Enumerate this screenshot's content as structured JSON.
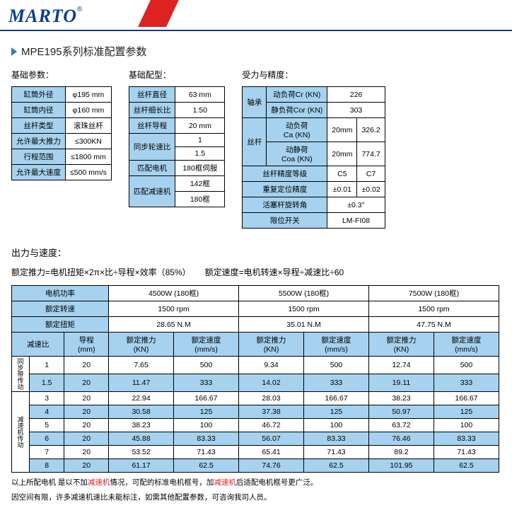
{
  "brand": "MARTO",
  "reg": "®",
  "title": "MPE195系列标准配置参数",
  "g1": {
    "label": "基础参数：",
    "rows": [
      [
        "缸筒外径",
        "φ195 mm"
      ],
      [
        "缸筒内径",
        "φ160 mm"
      ],
      [
        "丝杆类型",
        "滚珠丝杆"
      ],
      [
        "允许最大推力",
        "≤300KN"
      ],
      [
        "行程范围",
        "≤1800 mm"
      ],
      [
        "允许最大速度",
        "≤500 mm/s"
      ]
    ]
  },
  "g2": {
    "label": "基础配型：",
    "rows": [
      [
        "丝杆直径",
        "63 mm",
        1
      ],
      [
        "丝杆细长比",
        "1:50",
        1
      ],
      [
        "丝杆导程",
        "20 mm",
        1
      ],
      [
        "同步轮速比",
        "1",
        2,
        "1.5"
      ],
      [
        "匹配电机",
        "180框伺服",
        1
      ],
      [
        "匹配减速机",
        "142框",
        2,
        "180框"
      ]
    ]
  },
  "g3": {
    "label": "受力与精度：",
    "bearing": {
      "lbl": "轴承",
      "r1": [
        "动负荷Cr (KN)",
        "226"
      ],
      "r2": [
        "静负荷Cor (KN)",
        "303"
      ]
    },
    "screw": {
      "lbl": "丝杆",
      "r1": [
        "动负荷\nCa (KN)",
        "20mm",
        "326.2"
      ],
      "r2": [
        "动静荷\nCoa (KN)",
        "20mm",
        "774.7"
      ]
    },
    "prec": [
      "丝杆精度等级",
      "C5",
      "C7"
    ],
    "rep": [
      "重复定位精度",
      "±0.01",
      "±0.02"
    ],
    "rot": [
      "活塞杆旋转角",
      "±0.3°"
    ],
    "limit": [
      "限位开关",
      "LM-FI08"
    ]
  },
  "out": {
    "title": "出力与速度：",
    "formula1a": "额定推力=电机扭矩×2π×",
    "formula1b": "减速",
    "formula1c": "比÷导程×效率（85%）",
    "formula2": "额定速度=电机转速×导程÷减速比÷60",
    "hdr1": [
      "电机功率",
      "4500W (180框)",
      "5500W (180框)",
      "7500W (180框)"
    ],
    "hdr2": [
      "额定转速",
      "1500 rpm",
      "1500 rpm",
      "1500 rpm"
    ],
    "hdr3": [
      "额定扭矩",
      "28.65 N.M",
      "35.01 N.M",
      "47.75 N.M"
    ],
    "colh": [
      "减速比",
      "导程\n(mm)",
      "额定推力\n(KN)",
      "额定速度\n(mm/s)",
      "额定推力\n(KN)",
      "额定速度\n(mm/s)",
      "额定推力\n(KN)",
      "额定速度\n(mm/s)"
    ],
    "sec1": "同步带传动",
    "sec2": "减速机传动",
    "rows": [
      [
        "1",
        "20",
        "7.65",
        "500",
        "9.34",
        "500",
        "12.74",
        "500",
        0
      ],
      [
        "1.5",
        "20",
        "11.47",
        "333",
        "14.02",
        "333",
        "19.11",
        "333",
        1
      ],
      [
        "3",
        "20",
        "22.94",
        "166.67",
        "28.03",
        "166.67",
        "38.23",
        "166.67",
        0
      ],
      [
        "4",
        "20",
        "30.58",
        "125",
        "37.38",
        "125",
        "50.97",
        "125",
        1
      ],
      [
        "5",
        "20",
        "38.23",
        "100",
        "46.72",
        "100",
        "63.72",
        "100",
        0
      ],
      [
        "6",
        "20",
        "45.88",
        "83.33",
        "56.07",
        "83.33",
        "76.46",
        "83.33",
        1
      ],
      [
        "7",
        "20",
        "53.52",
        "71.43",
        "65.41",
        "71.43",
        "89.2",
        "71.43",
        0
      ],
      [
        "8",
        "20",
        "61.17",
        "62.5",
        "74.76",
        "62.5",
        "101.95",
        "62.5",
        1
      ]
    ]
  },
  "notes": [
    {
      "pre": "以上所配电机 是以不加",
      "red": "减速机",
      "mid": "情况，可配的标准电机框号，加",
      "red2": "减速机",
      "post": "后适配电机框号更广泛。"
    },
    {
      "text": "因空间有限，许多减速机速比未能标注，如需其他配置参数，可咨询我司人员。"
    }
  ]
}
